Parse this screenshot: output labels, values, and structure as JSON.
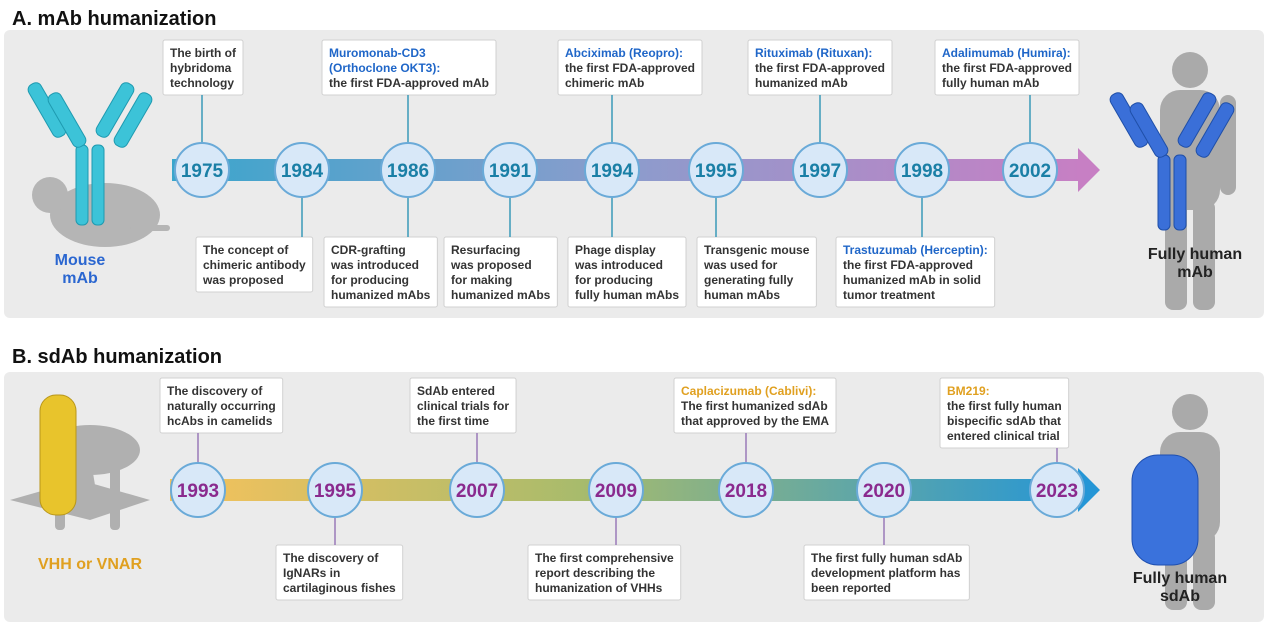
{
  "panels": [
    {
      "title": "A. mAb humanization",
      "source_label": "Mouse mAb",
      "target_label": "Fully human mAb",
      "milestones": [
        {
          "year": "1975",
          "above": {
            "text": [
              "The birth of",
              "hybridoma",
              "technology"
            ]
          }
        },
        {
          "year": "1984",
          "below": {
            "text": [
              "The concept of",
              "chimeric antibody",
              "was proposed"
            ]
          }
        },
        {
          "year": "1986",
          "above": {
            "heading": [
              "Muromonab-CD3",
              "(Orthoclone OKT3):"
            ],
            "text": [
              "the first FDA-approved mAb"
            ]
          },
          "below": {
            "text": [
              "CDR-grafting",
              "was introduced",
              "for producing",
              "humanized mAbs"
            ]
          }
        },
        {
          "year": "1991",
          "below": {
            "text": [
              "Resurfacing",
              "was proposed",
              "for making",
              "humanized mAbs"
            ]
          }
        },
        {
          "year": "1994",
          "above": {
            "heading": [
              "Abciximab (Reopro):"
            ],
            "text": [
              "the first FDA-approved",
              "chimeric mAb"
            ]
          },
          "below": {
            "text": [
              "Phage display",
              "was introduced",
              "for producing",
              "fully human mAbs"
            ]
          }
        },
        {
          "year": "1995",
          "below": {
            "text": [
              "Transgenic mouse",
              "was used for",
              "generating fully",
              "human mAbs"
            ]
          }
        },
        {
          "year": "1997",
          "above": {
            "heading": [
              "Rituximab (Rituxan):"
            ],
            "text": [
              "the first FDA-approved",
              "humanized mAb"
            ]
          }
        },
        {
          "year": "1998",
          "below": {
            "heading": [
              "Trastuzumab (Herceptin):"
            ],
            "text": [
              "the first FDA-approved",
              "humanized mAb in solid",
              "tumor treatment"
            ]
          }
        },
        {
          "year": "2002",
          "above": {
            "heading": [
              "Adalimumab (Humira):"
            ],
            "text": [
              "the first FDA-approved",
              "fully human mAb"
            ]
          }
        }
      ]
    },
    {
      "title": "B. sdAb humanization",
      "source_label": "VHH or VNAR",
      "target_label": "Fully human sdAb",
      "milestones": [
        {
          "year": "1993",
          "above": {
            "text": [
              "The discovery of",
              "naturally occurring",
              "hcAbs in camelids"
            ]
          }
        },
        {
          "year": "1995",
          "below": {
            "text": [
              "The discovery of",
              "IgNARs in",
              "cartilaginous fishes"
            ]
          }
        },
        {
          "year": "2007",
          "above": {
            "text": [
              "SdAb entered",
              "clinical trials for",
              "the first time"
            ]
          }
        },
        {
          "year": "2009",
          "below": {
            "text": [
              "The first comprehensive",
              "report describing the",
              "humanization of VHHs"
            ]
          }
        },
        {
          "year": "2018",
          "above": {
            "heading": [
              "Caplacizumab (Cablivi):"
            ],
            "text": [
              "The first humanized sdAb",
              "that approved by the EMA"
            ]
          }
        },
        {
          "year": "2020",
          "below": {
            "text": [
              "The first fully human sdAb",
              "development platform has",
              "been reported"
            ]
          }
        },
        {
          "year": "2023",
          "above": {
            "heading": [
              "BM219:"
            ],
            "text": [
              "the first fully human",
              "bispecific sdAb that",
              "entered clinical trial"
            ]
          }
        }
      ]
    }
  ]
}
